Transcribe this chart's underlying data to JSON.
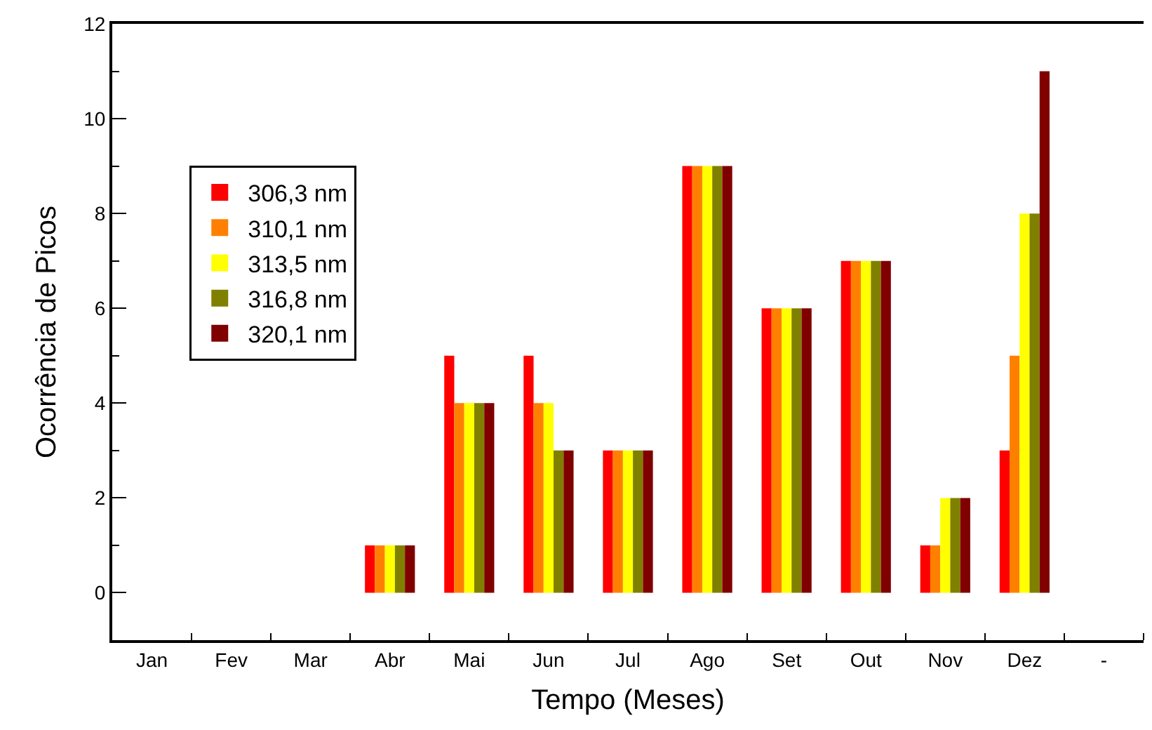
{
  "chart_data": {
    "type": "bar",
    "xlabel": "Tempo (Meses)",
    "ylabel": "Ocorrência de Picos",
    "categories": [
      "Jan",
      "Fev",
      "Mar",
      "Abr",
      "Mai",
      "Jun",
      "Jul",
      "Ago",
      "Set",
      "Out",
      "Nov",
      "Dez",
      "-"
    ],
    "series": [
      {
        "name": "306,3 nm",
        "color": "#ff0000",
        "values": [
          0,
          0,
          0,
          1,
          5,
          5,
          3,
          9,
          6,
          7,
          1,
          3,
          null
        ]
      },
      {
        "name": "310,1 nm",
        "color": "#ff8000",
        "values": [
          0,
          0,
          0,
          1,
          4,
          4,
          3,
          9,
          6,
          7,
          1,
          5,
          null
        ]
      },
      {
        "name": "313,5 nm",
        "color": "#ffff00",
        "values": [
          0,
          0,
          0,
          1,
          4,
          4,
          3,
          9,
          6,
          7,
          2,
          8,
          null
        ]
      },
      {
        "name": "316,8 nm",
        "color": "#808000",
        "values": [
          0,
          0,
          0,
          1,
          4,
          3,
          3,
          9,
          6,
          7,
          2,
          8,
          null
        ]
      },
      {
        "name": "320,1 nm",
        "color": "#800000",
        "values": [
          0,
          0,
          0,
          1,
          4,
          3,
          3,
          9,
          6,
          7,
          2,
          11,
          null
        ]
      }
    ],
    "ylim": [
      -1,
      12
    ],
    "yticks": [
      0,
      2,
      4,
      6,
      8,
      10,
      12
    ],
    "grid": false,
    "legend": "top left"
  }
}
